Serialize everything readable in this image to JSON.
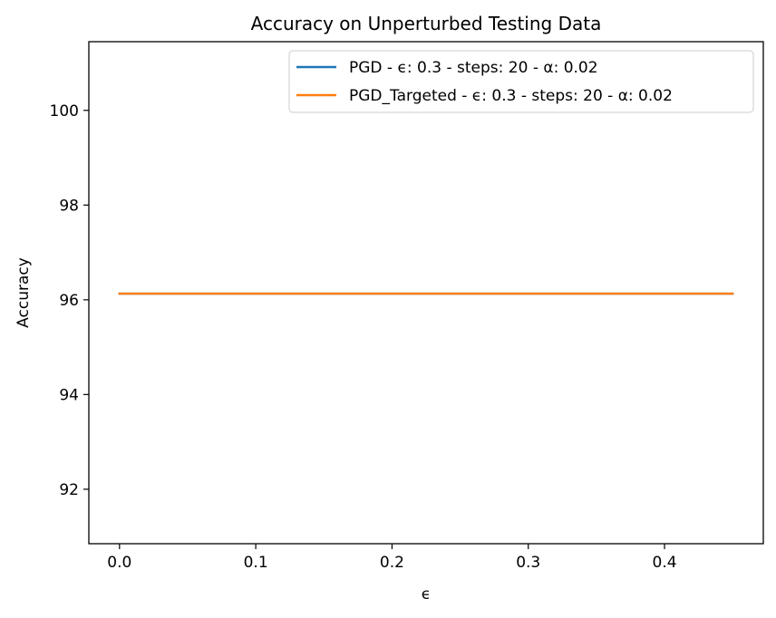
{
  "chart_data": {
    "type": "line",
    "title": "Accuracy on Unperturbed Testing Data",
    "xlabel": "ϵ",
    "ylabel": "Accuracy",
    "xlim": [
      -0.0225,
      0.4725
    ],
    "ylim": [
      90.85,
      101.45
    ],
    "xticks": [
      0.0,
      0.1,
      0.2,
      0.3,
      0.4
    ],
    "xtick_labels": [
      "0.0",
      "0.1",
      "0.2",
      "0.3",
      "0.4"
    ],
    "yticks": [
      92,
      94,
      96,
      98,
      100
    ],
    "ytick_labels": [
      "92",
      "94",
      "96",
      "98",
      "100"
    ],
    "grid": false,
    "legend_position": "top-right",
    "series": [
      {
        "name": "PGD - ϵ: 0.3 - steps: 20 - α: 0.02",
        "color": "#1f77b4",
        "x": [
          0.0,
          0.45
        ],
        "y": [
          96.13,
          96.13
        ]
      },
      {
        "name": "PGD_Targeted - ϵ: 0.3 - steps: 20 - α: 0.02",
        "color": "#ff7f0e",
        "x": [
          0.0,
          0.45
        ],
        "y": [
          96.13,
          96.13
        ]
      }
    ]
  }
}
